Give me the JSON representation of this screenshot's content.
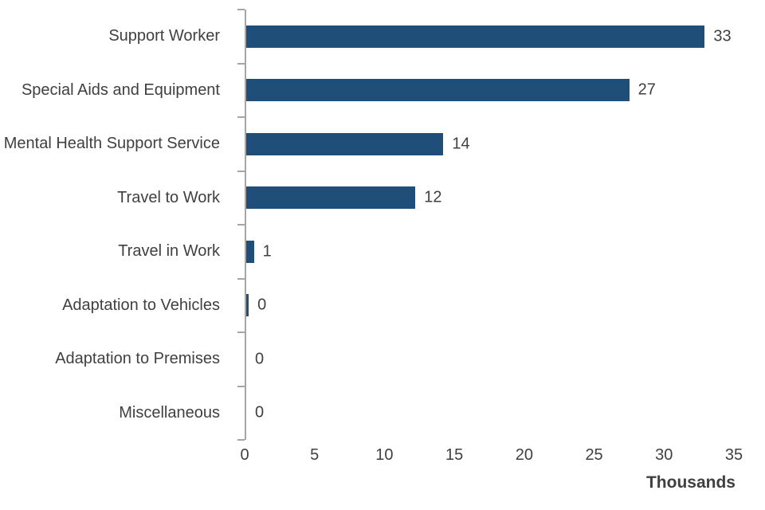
{
  "chart_data": {
    "type": "bar",
    "orientation": "horizontal",
    "title": "",
    "xlabel": "Thousands",
    "ylabel": "",
    "categories": [
      "Support Worker",
      "Special Aids and Equipment",
      "Mental Health Support Service",
      "Travel to Work",
      "Travel in Work",
      "Adaptation to Vehicles",
      "Adaptation to Premises",
      "Miscellaneous"
    ],
    "values": [
      33,
      27,
      14,
      12,
      1,
      0,
      0,
      0
    ],
    "values_precise": [
      32.8,
      27.4,
      14.1,
      12.1,
      0.55,
      0.18,
      0,
      0
    ],
    "value_labels": [
      "33",
      "27",
      "14",
      "12",
      "1",
      "0",
      "0",
      "0"
    ],
    "xticks": [
      0,
      5,
      10,
      15,
      20,
      25,
      30,
      35
    ],
    "xlim": [
      0,
      35
    ],
    "units": "Thousands",
    "grid": false,
    "legend": false,
    "bar_color": "#1f4e79",
    "text_color": "#404040",
    "axis_color": "#a6a6a6"
  }
}
